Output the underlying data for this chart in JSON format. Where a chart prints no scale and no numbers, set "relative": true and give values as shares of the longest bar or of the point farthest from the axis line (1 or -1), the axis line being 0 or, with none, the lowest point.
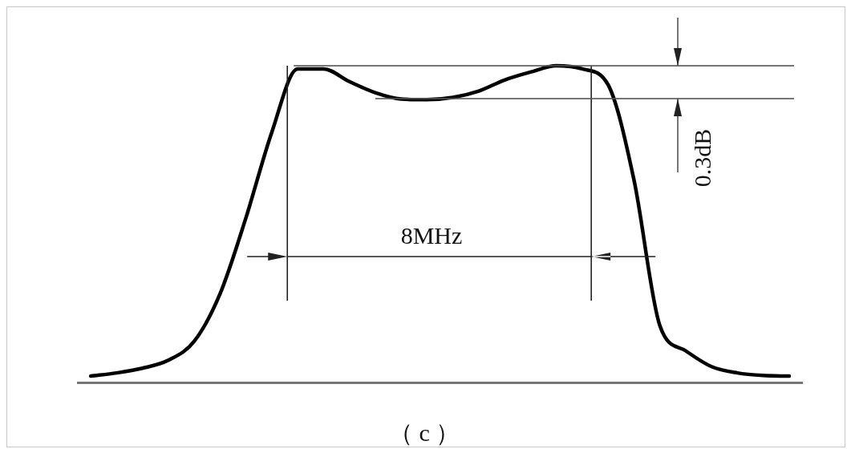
{
  "chart_data": {
    "type": "line",
    "relative": true,
    "categories": [
      null,
      null,
      null,
      null,
      null,
      null,
      null,
      null,
      null,
      null,
      null,
      null,
      null,
      null,
      null,
      null,
      null,
      null,
      null,
      null,
      null,
      null,
      null,
      null,
      null,
      null,
      null,
      null
    ],
    "series": [
      {
        "color": "#000000",
        "values": [
          0.02,
          0.03,
          0.045,
          0.07,
          0.13,
          0.28,
          0.52,
          0.79,
          0.99,
          0.99,
          0.95,
          0.915,
          0.895,
          0.893,
          0.9,
          0.92,
          0.955,
          0.98,
          1,
          0.99,
          0.94,
          0.64,
          0.18,
          0.1,
          0.05,
          0.03,
          0.022,
          0.02
        ]
      }
    ],
    "annotations": [
      "8MHz",
      "0.3dB",
      "（ c ）"
    ]
  }
}
